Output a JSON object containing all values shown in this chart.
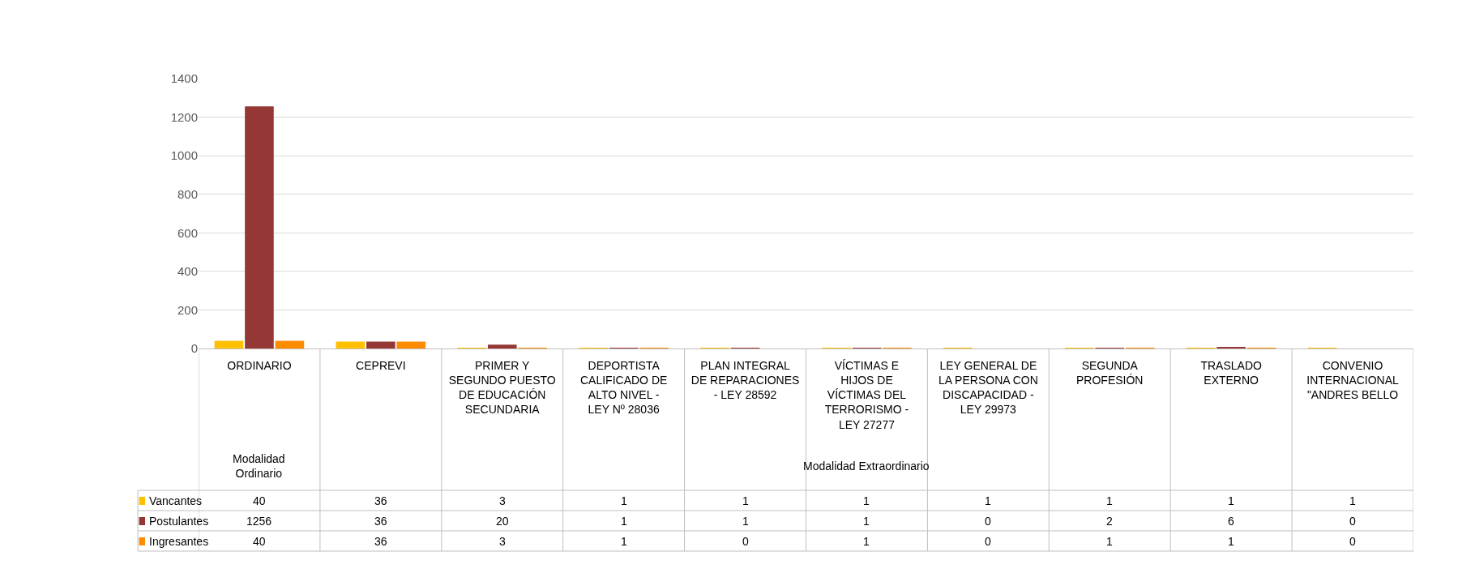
{
  "chart_data": {
    "type": "bar",
    "categories": [
      "ORDINARIO",
      "CEPREVI",
      "PRIMER Y SEGUNDO PUESTO DE EDUCACIÓN SECUNDARIA",
      "DEPORTISTA CALIFICADO DE ALTO NIVEL - LEY Nº 28036",
      "PLAN INTEGRAL DE REPARACIONES - LEY 28592",
      "VÍCTIMAS E HIJOS DE VÍCTIMAS DEL TERRORISMO - LEY 27277",
      "LEY GENERAL DE LA PERSONA CON DISCAPACIDAD - LEY 29973",
      "SEGUNDA PROFESIÓN",
      "TRASLADO EXTERNO",
      "CONVENIO INTERNACIONAL \"ANDRES BELLO"
    ],
    "series": [
      {
        "name": "Vancantes",
        "color": "#ffc000",
        "values": [
          40,
          36,
          3,
          1,
          1,
          1,
          1,
          1,
          1,
          1
        ]
      },
      {
        "name": "Postulantes",
        "color": "#953735",
        "values": [
          1256,
          36,
          20,
          1,
          1,
          1,
          0,
          2,
          6,
          0
        ]
      },
      {
        "name": "Ingresantes",
        "color": "#ff8c00",
        "values": [
          40,
          36,
          3,
          1,
          0,
          1,
          0,
          1,
          1,
          0
        ]
      }
    ],
    "annotations": [
      "Modalidad Ordinario",
      "Modalidad Extraordinario"
    ],
    "ylim": [
      0,
      1400
    ],
    "yticks": [
      0,
      200,
      400,
      600,
      800,
      1000,
      1200,
      1400
    ],
    "grid": "y",
    "data_labels": true,
    "legend": "bottom left"
  }
}
